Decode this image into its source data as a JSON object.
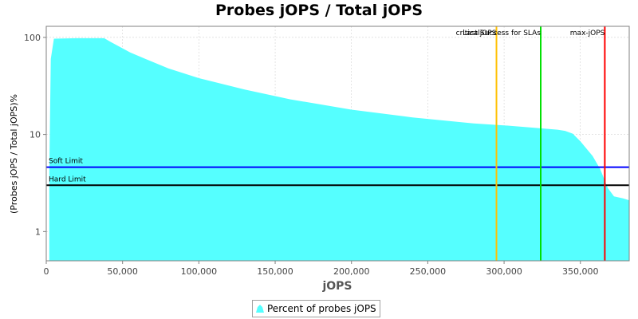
{
  "chart_data": {
    "type": "area",
    "title": "Probes jOPS / Total jOPS",
    "xlabel": "jOPS",
    "ylabel": "(Probes jOPS / Total jOPS)%",
    "xlim": [
      0,
      382000
    ],
    "ylim": [
      0.5,
      130
    ],
    "yscale": "log",
    "x_ticks": [
      0,
      50000,
      100000,
      150000,
      200000,
      250000,
      300000,
      350000
    ],
    "x_tick_labels": [
      "0",
      "50,000",
      "100,000",
      "150,000",
      "200,000",
      "250,000",
      "300,000",
      "350,000"
    ],
    "y_ticks": [
      1,
      10,
      100
    ],
    "y_tick_labels": [
      "1",
      "10",
      "100"
    ],
    "series": [
      {
        "name": "Percent of probes jOPS",
        "color": "#55ffff",
        "x": [
          2000,
          3000,
          5000,
          20000,
          38000,
          42000,
          55000,
          65000,
          80000,
          100000,
          130000,
          160000,
          200000,
          240000,
          280000,
          300000,
          320000,
          335000,
          340000,
          345000,
          350000,
          358000,
          363000,
          368000,
          372000,
          378000,
          382000
        ],
        "y": [
          4.0,
          60,
          97,
          98,
          98,
          90,
          70,
          60,
          48,
          38,
          29,
          23,
          18,
          15,
          13,
          12.4,
          11.7,
          11.2,
          10.9,
          10.2,
          8.5,
          6.0,
          4.4,
          2.8,
          2.3,
          2.2,
          2.1
        ]
      }
    ],
    "reference_lines": [
      {
        "label": "Soft Limit",
        "orientation": "horizontal",
        "value": 4.6,
        "color": "#0000ff"
      },
      {
        "label": "Hard Limit",
        "orientation": "horizontal",
        "value": 3.0,
        "color": "#000000"
      },
      {
        "label": "criticaljOPS",
        "orientation": "vertical",
        "value": 295000,
        "color": "#ffc000"
      },
      {
        "label": "Last Success for SLAs",
        "orientation": "vertical",
        "value": 324000,
        "color": "#00e000"
      },
      {
        "label": "max-jOPS",
        "orientation": "vertical",
        "value": 366000,
        "color": "#ff0000"
      }
    ],
    "grid": true,
    "legend_position": "bottom"
  }
}
